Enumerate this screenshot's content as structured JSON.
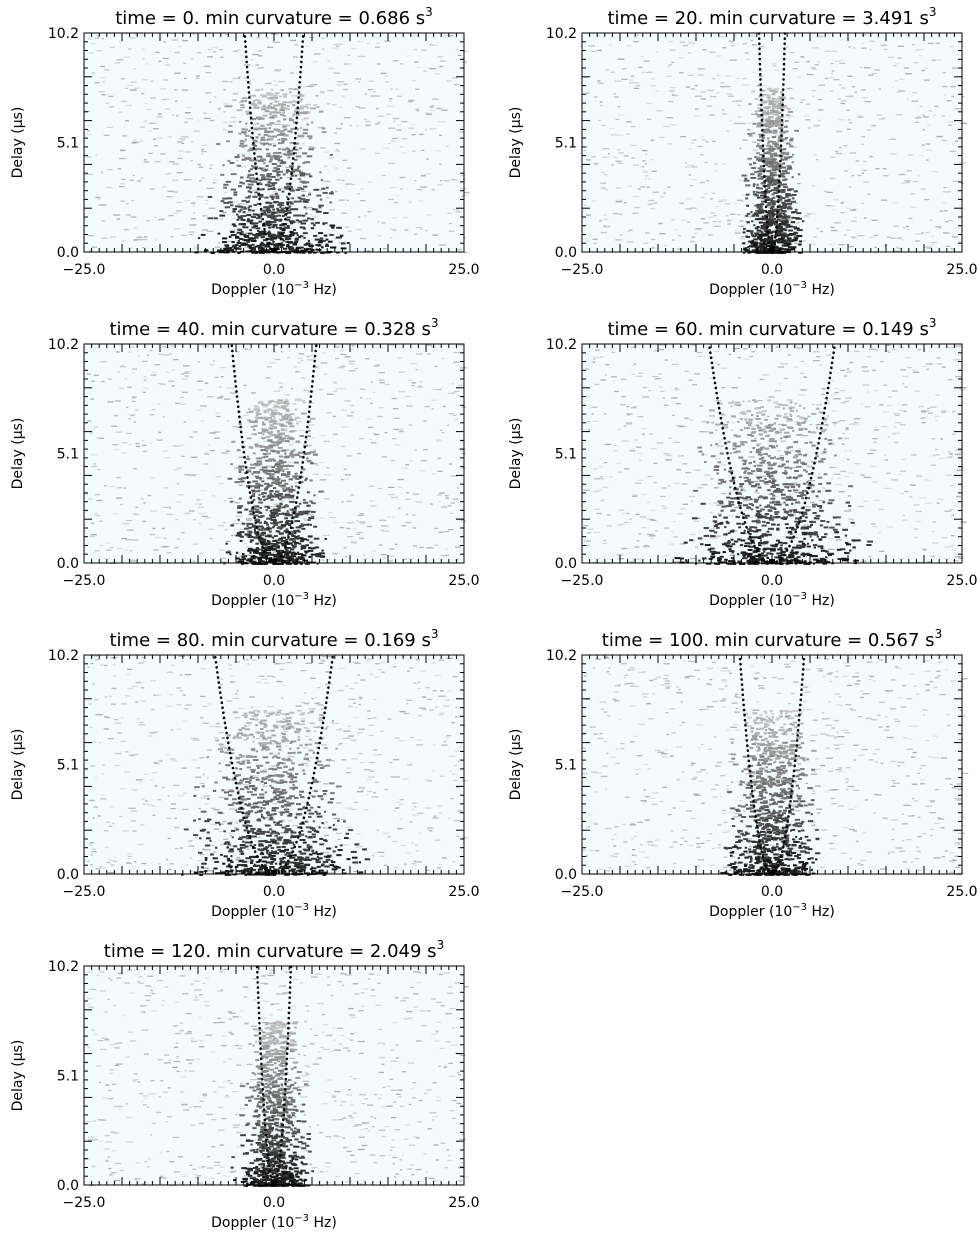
{
  "chart_data": [
    {
      "type": "heatmap",
      "title": {
        "prefix": "time = ",
        "time": "0.",
        "unit": " min",
        "mid": "curvature = ",
        "curv": "0.686",
        "cunit": " s"
      },
      "xlabel": "Doppler",
      "xunit": "Hz",
      "ylabel": "Delay",
      "yunit": "s",
      "xlim": [
        -25.0,
        25.0
      ],
      "ylim": [
        0.0,
        10.2
      ],
      "xticks": [
        "−25.0",
        "0.0",
        "25.0"
      ],
      "yticks": [
        "0.0",
        "5.1",
        "10.2"
      ],
      "curvature": 0.686,
      "spread": 6,
      "scale_x": "10",
      "scale_exp": "−3",
      "cube": "3",
      "mu": "μ"
    },
    {
      "type": "heatmap",
      "title": {
        "prefix": "time = ",
        "time": "20.",
        "unit": " min",
        "mid": "curvature = ",
        "curv": "3.491",
        "cunit": " s"
      },
      "xlabel": "Doppler",
      "xunit": "Hz",
      "ylabel": "Delay",
      "yunit": "s",
      "xlim": [
        -25.0,
        25.0
      ],
      "ylim": [
        0.0,
        10.2
      ],
      "xticks": [
        "−25.0",
        "0.0",
        "25.0"
      ],
      "yticks": [
        "0.0",
        "5.1",
        "10.2"
      ],
      "curvature": 3.491,
      "spread": 2.6,
      "scale_x": "10",
      "scale_exp": "−3",
      "cube": "3",
      "mu": "μ"
    },
    {
      "type": "heatmap",
      "title": {
        "prefix": "time = ",
        "time": "40.",
        "unit": " min",
        "mid": "curvature = ",
        "curv": "0.328",
        "cunit": " s"
      },
      "xlabel": "Doppler",
      "xunit": "Hz",
      "ylabel": "Delay",
      "yunit": "s",
      "xlim": [
        -25.0,
        25.0
      ],
      "ylim": [
        0.0,
        10.2
      ],
      "xticks": [
        "−25.0",
        "0.0",
        "25.0"
      ],
      "yticks": [
        "0.0",
        "5.1",
        "10.2"
      ],
      "curvature": 0.328,
      "spread": 4.5,
      "scale_x": "10",
      "scale_exp": "−3",
      "cube": "3",
      "mu": "μ"
    },
    {
      "type": "heatmap",
      "title": {
        "prefix": "time = ",
        "time": "60.",
        "unit": " min",
        "mid": "curvature = ",
        "curv": "0.149",
        "cunit": " s"
      },
      "xlabel": "Doppler",
      "xunit": "Hz",
      "ylabel": "Delay",
      "yunit": "s",
      "xlim": [
        -25.0,
        25.0
      ],
      "ylim": [
        0.0,
        10.2
      ],
      "xticks": [
        "−25.0",
        "0.0",
        "25.0"
      ],
      "yticks": [
        "0.0",
        "5.1",
        "10.2"
      ],
      "curvature": 0.149,
      "spread": 8,
      "scale_x": "10",
      "scale_exp": "−3",
      "cube": "3",
      "mu": "μ"
    },
    {
      "type": "heatmap",
      "title": {
        "prefix": "time = ",
        "time": "80.",
        "unit": " min",
        "mid": "curvature = ",
        "curv": "0.169",
        "cunit": " s"
      },
      "xlabel": "Doppler",
      "xunit": "Hz",
      "ylabel": "Delay",
      "yunit": "s",
      "xlim": [
        -25.0,
        25.0
      ],
      "ylim": [
        0.0,
        10.2
      ],
      "xticks": [
        "−25.0",
        "0.0",
        "25.0"
      ],
      "yticks": [
        "0.0",
        "5.1",
        "10.2"
      ],
      "curvature": 0.169,
      "spread": 7.5,
      "scale_x": "10",
      "scale_exp": "−3",
      "cube": "3",
      "mu": "μ"
    },
    {
      "type": "heatmap",
      "title": {
        "prefix": "time = ",
        "time": "100.",
        "unit": " min",
        "mid": "curvature = ",
        "curv": "0.567",
        "cunit": " s"
      },
      "xlabel": "Doppler",
      "xunit": "Hz",
      "ylabel": "Delay",
      "yunit": "s",
      "xlim": [
        -25.0,
        25.0
      ],
      "ylim": [
        0.0,
        10.2
      ],
      "xticks": [
        "−25.0",
        "0.0",
        "25.0"
      ],
      "yticks": [
        "0.0",
        "5.1",
        "10.2"
      ],
      "curvature": 0.567,
      "spread": 4.2,
      "scale_x": "10",
      "scale_exp": "−3",
      "cube": "3",
      "mu": "μ"
    },
    {
      "type": "heatmap",
      "title": {
        "prefix": "time = ",
        "time": "120.",
        "unit": " min",
        "mid": "curvature = ",
        "curv": "2.049",
        "cunit": " s"
      },
      "xlabel": "Doppler",
      "xunit": "Hz",
      "ylabel": "Delay",
      "yunit": "s",
      "xlim": [
        -25.0,
        25.0
      ],
      "ylim": [
        0.0,
        10.2
      ],
      "xticks": [
        "−25.0",
        "0.0",
        "25.0"
      ],
      "yticks": [
        "0.0",
        "5.1",
        "10.2"
      ],
      "curvature": 2.049,
      "spread": 3.2,
      "scale_x": "10",
      "scale_exp": "−3",
      "cube": "3",
      "mu": "μ"
    }
  ]
}
